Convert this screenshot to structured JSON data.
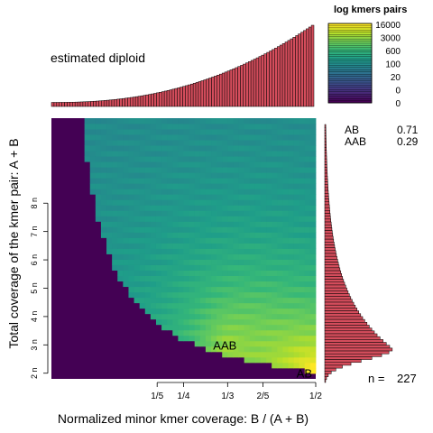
{
  "chart_data": {
    "type": "heatmap",
    "title": "estimated diploid",
    "xlabel": "Normalized minor kmer coverage: B / (A + B)",
    "ylabel": "Total coverage of the kmer pair: A + B",
    "x_ticks": [
      {
        "label": "1/5",
        "value": 0.2
      },
      {
        "label": "1/4",
        "value": 0.25
      },
      {
        "label": "1/3",
        "value": 0.3333
      },
      {
        "label": "2/5",
        "value": 0.4
      },
      {
        "label": "1/2",
        "value": 0.5
      }
    ],
    "y_ticks": [
      {
        "label": "2 n",
        "value": 2
      },
      {
        "label": "3 n",
        "value": 3
      },
      {
        "label": "4 n",
        "value": 4
      },
      {
        "label": "5 n",
        "value": 5
      },
      {
        "label": "6 n",
        "value": 6
      },
      {
        "label": "7 n",
        "value": 7
      },
      {
        "label": "8 n",
        "value": 8
      }
    ],
    "xlim": [
      0,
      0.5
    ],
    "ylim": [
      1.8,
      11
    ],
    "annotations": [
      {
        "label": "AAB",
        "x": 0.3333,
        "y": 3
      },
      {
        "label": "AB",
        "x": 0.5,
        "y": 2
      }
    ],
    "legend": {
      "title": "log kmers pairs",
      "labels": [
        "16000",
        "3000",
        "600",
        "100",
        "20",
        "0",
        "0"
      ],
      "colors": [
        "#fde725",
        "#b5de2b",
        "#6ece58",
        "#35b779",
        "#1f9e89",
        "#26828e",
        "#31688e",
        "#3e4989",
        "#482878",
        "#440154"
      ]
    },
    "proportions": [
      {
        "label": "AB",
        "value": "0.71"
      },
      {
        "label": "AAB",
        "value": "0.29"
      }
    ],
    "nhat": {
      "label": "n =",
      "value": "227"
    },
    "top_histogram": {
      "bins": 100,
      "growth": 1.0,
      "color": "#d44d5c"
    },
    "right_histogram": {
      "bins": 90,
      "peak_coverage": 3.0,
      "color": "#d44d5c"
    }
  }
}
